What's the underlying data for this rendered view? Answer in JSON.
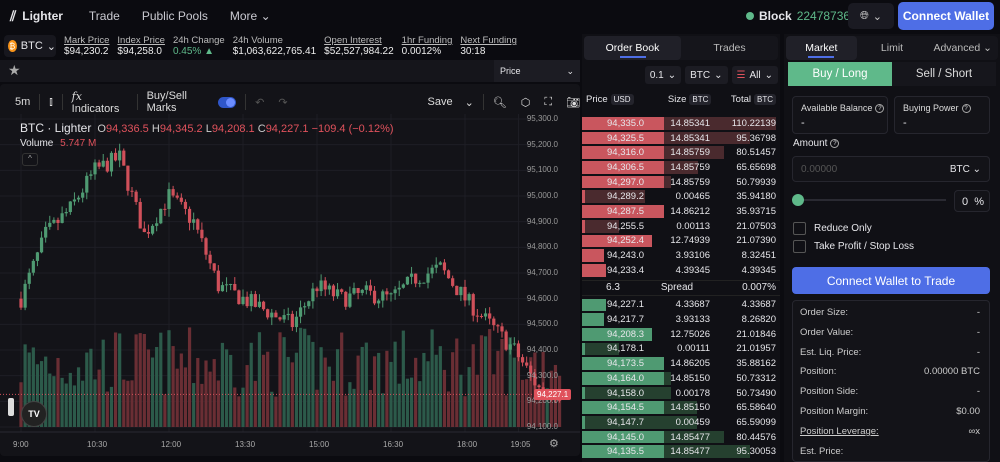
{
  "nav": {
    "brand": "Lighter",
    "links": [
      "Trade",
      "Public Pools",
      "More"
    ],
    "block_label": "Block",
    "block_number": "22478736",
    "connect": "Connect Wallet"
  },
  "ticker": {
    "symbol": "BTC",
    "stats": [
      {
        "label": "Mark Price",
        "value": "$94,230.2",
        "underline": true
      },
      {
        "label": "Index Price",
        "value": "$94,258.0",
        "underline": true
      },
      {
        "label": "24h Change",
        "value": "0.45% ▲",
        "underline": false,
        "color": "#5fb98a"
      },
      {
        "label": "24h Volume",
        "value": "$1,063,622,765.41",
        "underline": false
      },
      {
        "label": "Open Interest",
        "value": "$52,527,984.22",
        "underline": true
      },
      {
        "label": "1hr Funding",
        "value": "0.0012%",
        "underline": true
      },
      {
        "label": "Next Funding",
        "value": "30:18",
        "underline": true
      }
    ]
  },
  "chart_toolbar": {
    "price_select": "Price",
    "interval": "5m",
    "indicators": "Indicators",
    "buy_sell_marks": "Buy/Sell Marks",
    "save": "Save"
  },
  "chart_legend": {
    "title": "BTC · Lighter",
    "o": "94,336.5",
    "h": "94,345.2",
    "l": "94,208.1",
    "c": "94,227.1",
    "change": "−109.4 (−0.12%)",
    "volume_label": "Volume",
    "volume": "5.747 M"
  },
  "chart_data": {
    "type": "candlestick",
    "y_ticks": [
      "95,300.0",
      "95,200.0",
      "95,100.0",
      "95,000.0",
      "94,900.0",
      "94,800.0",
      "94,700.0",
      "94,600.0",
      "94,500.0",
      "94,400.0",
      "94,300.0",
      "94,200.0",
      "94,100.0"
    ],
    "ylim": [
      94080,
      95320
    ],
    "x_ticks": [
      "9:00",
      "10:30",
      "12:00",
      "13:30",
      "15:00",
      "16:30",
      "18:00",
      "19:05"
    ],
    "last_price": "94,227.1",
    "interval": "5m",
    "path_30min": [
      94600,
      94850,
      94950,
      95100,
      95150,
      94850,
      95000,
      94900,
      94650,
      94600,
      94550,
      94500,
      94650,
      94600,
      94620,
      94600,
      94680,
      94720,
      94600,
      94500,
      94400,
      94250,
      94227
    ]
  },
  "orderbook": {
    "tabs": [
      "Order Book",
      "Trades"
    ],
    "tick": "0.1",
    "unit": "BTC",
    "filter": "All",
    "headers": [
      "Price",
      "Size",
      "Total"
    ],
    "header_tags": [
      "USD",
      "BTC",
      "BTC"
    ],
    "asks": [
      [
        "94,335.0",
        "14.85341",
        "110.22139"
      ],
      [
        "94,325.5",
        "14.85341",
        "95.36798"
      ],
      [
        "94,316.0",
        "14.85759",
        "80.51457"
      ],
      [
        "94,306.5",
        "14.85759",
        "65.65698"
      ],
      [
        "94,297.0",
        "14.85759",
        "50.79939"
      ],
      [
        "94,289.2",
        "0.00465",
        "35.94180"
      ],
      [
        "94,287.5",
        "14.86212",
        "35.93715"
      ],
      [
        "94,255.5",
        "0.00113",
        "21.07503"
      ],
      [
        "94,252.4",
        "12.74939",
        "21.07390"
      ],
      [
        "94,243.0",
        "3.93106",
        "8.32451"
      ],
      [
        "94,233.4",
        "4.39345",
        "4.39345"
      ]
    ],
    "spread": {
      "value": "6.3",
      "label": "Spread",
      "pct": "0.007%"
    },
    "bids": [
      [
        "94,227.1",
        "4.33687",
        "4.33687"
      ],
      [
        "94,217.7",
        "3.93133",
        "8.26820"
      ],
      [
        "94,208.3",
        "12.75026",
        "21.01846"
      ],
      [
        "94,178.1",
        "0.00111",
        "21.01957"
      ],
      [
        "94,173.5",
        "14.86205",
        "35.88162"
      ],
      [
        "94,164.0",
        "14.85150",
        "50.73312"
      ],
      [
        "94,158.0",
        "0.00178",
        "50.73490"
      ],
      [
        "94,154.5",
        "14.85150",
        "65.58640"
      ],
      [
        "94,147.7",
        "0.00459",
        "65.59099"
      ],
      [
        "94,145.0",
        "14.85477",
        "80.44576"
      ],
      [
        "94,135.5",
        "14.85477",
        "95.30053"
      ]
    ]
  },
  "trade": {
    "tabs": [
      "Market",
      "Limit",
      "Advanced"
    ],
    "buy": "Buy / Long",
    "sell": "Sell / Short",
    "available_balance": "Available Balance",
    "available_value": "-",
    "buying_power": "Buying Power",
    "buying_value": "-",
    "amount": "Amount",
    "amount_placeholder": "0.00000",
    "amount_unit": "BTC",
    "percent": "0",
    "percent_sign": "%",
    "reduce_only": "Reduce Only",
    "tpsl": "Take Profit / Stop Loss",
    "connect": "Connect Wallet to Trade",
    "info": [
      [
        "Order Size:",
        "-"
      ],
      [
        "Order Value:",
        "-"
      ],
      [
        "Est. Liq. Price:",
        "-"
      ],
      [
        "Position:",
        "0.00000 BTC"
      ],
      [
        "Position Side:",
        "-"
      ],
      [
        "Position Margin:",
        "$0.00"
      ],
      [
        "Position Leverage:",
        "∞x"
      ],
      [
        "Est. Price:",
        ""
      ]
    ]
  },
  "colors": {
    "accent": "#4e6ee6",
    "up": "#5fb98a",
    "down": "#e0525c"
  }
}
